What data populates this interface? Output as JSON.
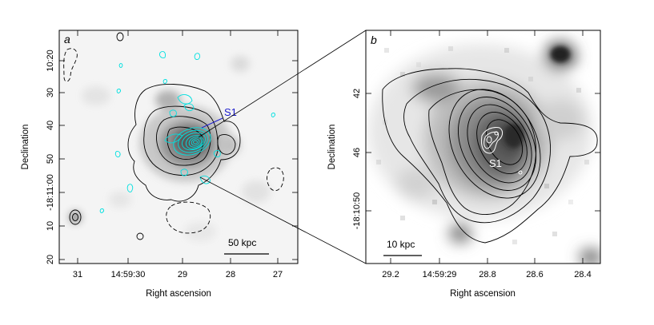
{
  "figure": {
    "panel_a": {
      "label": "a",
      "xlabel": "Right ascension",
      "ylabel": "Declination",
      "x_ticks": [
        "31",
        "14:59:30",
        "29",
        "28",
        "27"
      ],
      "y_ticks": [
        "10:20",
        "30",
        "40",
        "50",
        "-18:11:00",
        "10",
        "20"
      ],
      "source_label": "S1",
      "scale_bar_label": "50 kpc",
      "colors": {
        "contours": "#000000",
        "cyan_contours": "#00e0e0",
        "source_label": "#1a1acc"
      }
    },
    "panel_b": {
      "label": "b",
      "xlabel": "Right ascension",
      "ylabel": "Declination",
      "x_ticks": [
        "29.2",
        "14:59:29",
        "28.8",
        "28.6",
        "28.4"
      ],
      "y_ticks": [
        "42",
        "46",
        "-18:10:50"
      ],
      "source_label": "S1",
      "scale_bar_label": "10 kpc",
      "colors": {
        "contours": "#000000",
        "source_contours": "#ffffff",
        "source_label": "#ffffff"
      }
    }
  }
}
